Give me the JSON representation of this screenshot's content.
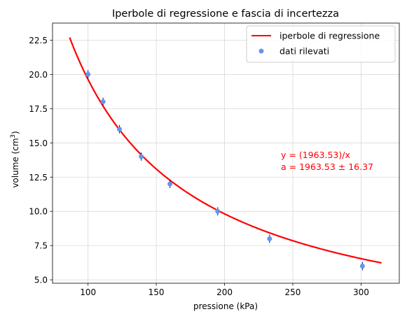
{
  "chart_data": {
    "type": "scatter",
    "title": "Iperbole di regressione e fascia di incertezza",
    "xlabel": "pressione (kPa)",
    "ylabel_main": "volume (cm",
    "ylabel_sup": "3",
    "ylabel_close": ")",
    "xlim": [
      74,
      328
    ],
    "ylim": [
      4.75,
      23.75
    ],
    "xticks": [
      100,
      150,
      200,
      250,
      300
    ],
    "yticks": [
      5.0,
      7.5,
      10.0,
      12.5,
      15.0,
      17.5,
      20.0,
      22.5
    ],
    "xtick_labels": [
      "100",
      "150",
      "200",
      "250",
      "300"
    ],
    "ytick_labels": [
      "5.0",
      "7.5",
      "10.0",
      "12.5",
      "15.0",
      "17.5",
      "20.0",
      "22.5"
    ],
    "grid": true,
    "legend_position": "top-right",
    "legend": [
      {
        "label": "iperbole di regressione",
        "kind": "line",
        "color": "#ff0000"
      },
      {
        "label": "dati rilevati",
        "kind": "marker",
        "color": "#6495ed"
      }
    ],
    "curve": {
      "name": "iperbole di regressione",
      "a": 1963.53,
      "x_start": 86.5,
      "x_end": 315,
      "color": "#ff0000"
    },
    "points": {
      "name": "dati rilevati",
      "color": "#6495ed",
      "errorbar_color": "#00008b",
      "x": [
        100.0,
        111.0,
        123.0,
        139.0,
        160.0,
        195.0,
        233.0,
        301.0
      ],
      "y": [
        20.0,
        18.0,
        16.0,
        14.0,
        12.0,
        10.0,
        8.0,
        6.0
      ],
      "yerr": [
        0.3,
        0.3,
        0.3,
        0.3,
        0.3,
        0.3,
        0.3,
        0.3
      ]
    },
    "annotation": {
      "line1": "y = (1963.53)/x",
      "line2": "a = 1963.53 ±  16.37",
      "color": "#ff0000"
    }
  }
}
